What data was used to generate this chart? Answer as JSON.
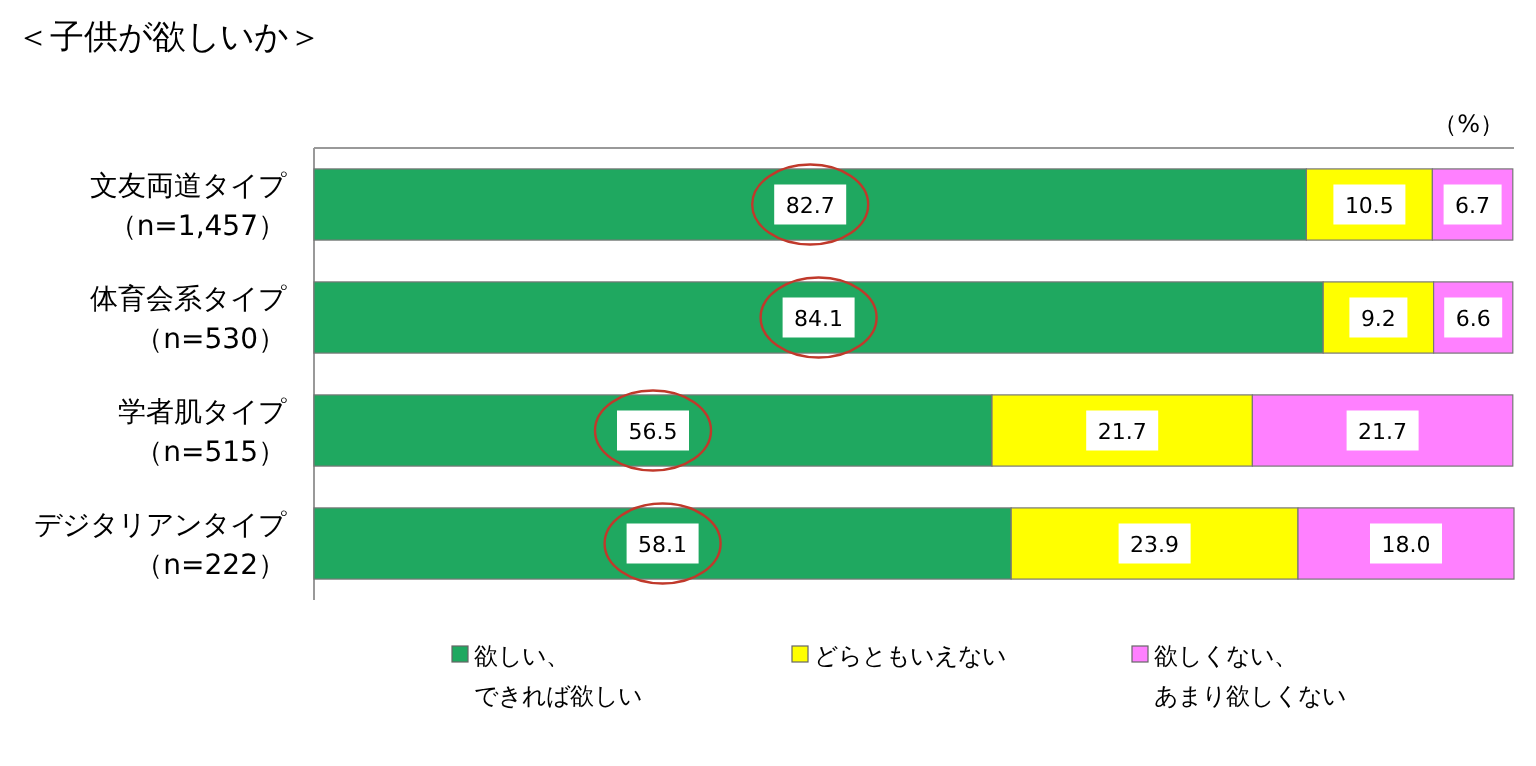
{
  "chart_data": {
    "type": "bar",
    "orientation": "horizontal",
    "stacked": true,
    "title": "＜子供が欲しいか＞",
    "annotations": [
      "（%）"
    ],
    "categories": [
      "文友両道タイプ（n=1,457）",
      "体育会系タイプ（n=530）",
      "学者肌タイプ（n=515）",
      "デジタリアンタイプ（n=222）"
    ],
    "series": [
      {
        "name": "欲しい、できれば欲しい",
        "color": "#1fa860",
        "values": [
          82.7,
          84.1,
          56.5,
          58.1
        ],
        "value_labels": [
          "82.7",
          "84.1",
          "56.5",
          "58.1"
        ]
      },
      {
        "name": "どらともいえない",
        "color": "#ffff00",
        "values": [
          10.5,
          9.2,
          21.7,
          23.9
        ],
        "value_labels": [
          "10.5",
          "9.2",
          "21.7",
          "23.9"
        ]
      },
      {
        "name": "欲しくない、あまり欲しくない",
        "color": "#ff80ff",
        "values": [
          6.7,
          6.6,
          21.7,
          18.0
        ],
        "value_labels": [
          "6.7",
          "6.6",
          "21.7",
          "18.0"
        ]
      }
    ],
    "legend": "bottom"
  }
}
